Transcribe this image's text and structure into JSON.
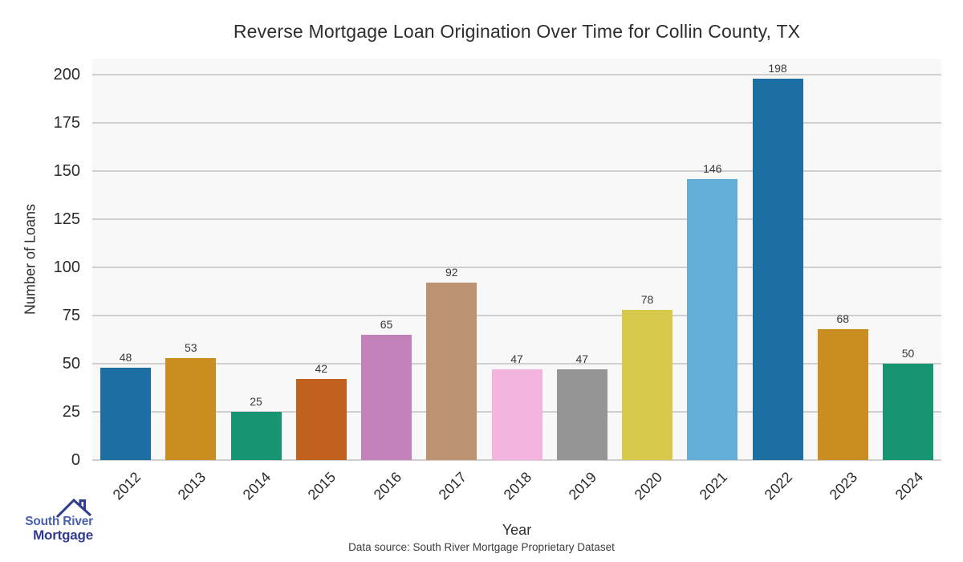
{
  "title": "Reverse Mortgage Loan Origination Over Time for Collin County, TX",
  "footer": {
    "data_source": "Data source: South River Mortgage Proprietary Dataset"
  },
  "logo": {
    "icon": "house-roof-icon",
    "line1": "South River",
    "line2": "Mortgage",
    "line1_color": "#4a61ad",
    "line2_color": "#303d8f",
    "icon_color": "#303d8f"
  },
  "chart_data": {
    "type": "bar",
    "title": "Reverse Mortgage Loan Origination Over Time for Collin County, TX",
    "xlabel": "Year",
    "ylabel": "Number of Loans",
    "categories": [
      "2012",
      "2013",
      "2014",
      "2015",
      "2016",
      "2017",
      "2018",
      "2019",
      "2020",
      "2021",
      "2022",
      "2023",
      "2024"
    ],
    "values": [
      48,
      53,
      25,
      42,
      65,
      92,
      47,
      47,
      78,
      146,
      198,
      68,
      50
    ],
    "bar_colors": [
      "#1d6fa3",
      "#c98d21",
      "#179471",
      "#c0611d",
      "#c381bb",
      "#bd9270",
      "#f3b5df",
      "#959595",
      "#d6c94c",
      "#64afd9",
      "#1d6fa3",
      "#c98d21",
      "#179471"
    ],
    "value_labels": [
      48,
      53,
      25,
      42,
      65,
      92,
      47,
      47,
      78,
      146,
      198,
      68,
      50
    ],
    "yticks": [
      0,
      25,
      50,
      75,
      100,
      125,
      150,
      175,
      200
    ],
    "ylim": [
      0,
      208
    ],
    "grid": "horizontal",
    "legend": "none",
    "plot_bg_color": "#f8f8f8",
    "grid_color": "#cfcfcf",
    "tick_label_color": "#2b2b2b",
    "value_label_color": "#38383a"
  }
}
